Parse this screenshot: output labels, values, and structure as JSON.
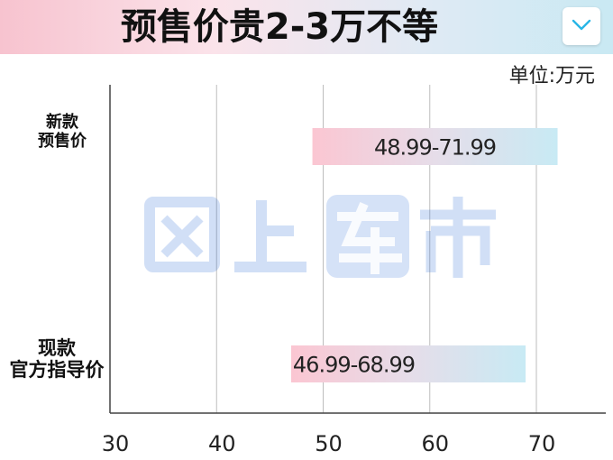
{
  "title": "预售价贵2-3万不等",
  "unit": "单位:万元",
  "colors": {
    "banner_start": "#f7c3cf",
    "banner_end": "#c9e9f3",
    "bar_start": "#fbc6d2",
    "bar_end": "#c8eaf4",
    "gridline": "#bdbdbd",
    "watermark": "#2f6fd6"
  },
  "icons": {
    "collapse": "chevron-down-icon"
  },
  "chart_data": {
    "type": "bar",
    "orientation": "horizontal",
    "title": "预售价贵2-3万不等",
    "xlabel": "",
    "ylabel": "",
    "unit": "单位:万元",
    "xlim": [
      30,
      75
    ],
    "xticks": [
      "30",
      "40",
      "50",
      "60",
      "70"
    ],
    "grid": true,
    "series": [
      {
        "values": [
          {
            "category_lines": [
              "新款",
              "预售价"
            ],
            "low": 48.99,
            "high": 71.99,
            "label": "48.99-71.99"
          },
          {
            "category_lines": [
              "现款",
              "官方指导价"
            ],
            "low": 46.99,
            "high": 68.99,
            "label": "46.99-68.99"
          }
        ]
      }
    ]
  }
}
